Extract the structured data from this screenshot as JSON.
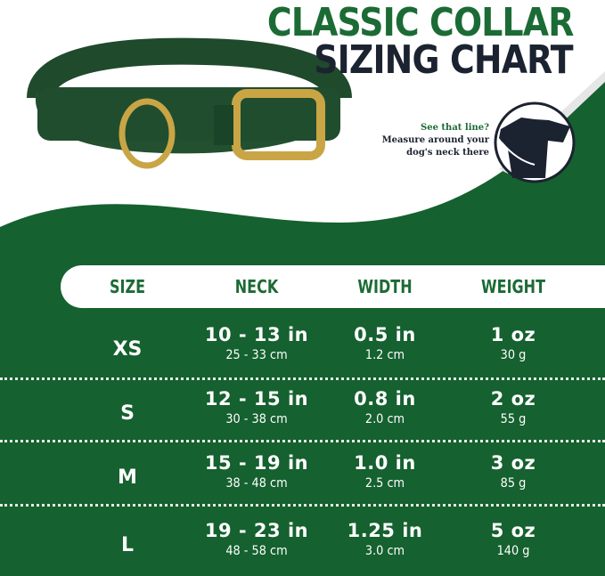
{
  "title_line1": "CLASSIC COLLAR",
  "title_line2": "SIZING CHART",
  "hint": {
    "line1": "See that line?",
    "line2": "Measure around your",
    "line3": "dog's neck there"
  },
  "colors": {
    "green": "#1c6b35",
    "navy": "#1b2230",
    "background_green": "#15612f"
  },
  "icons": [
    "collar-image",
    "dog-head-measure-icon"
  ],
  "headers": [
    "SIZE",
    "NECK",
    "WIDTH",
    "WEIGHT"
  ],
  "rows": [
    {
      "size": "XS",
      "neck_in": "10 - 13 in",
      "neck_cm": "25 - 33 cm",
      "width_in": "0.5 in",
      "width_cm": "1.2 cm",
      "weight_oz": "1 oz",
      "weight_g": "30 g"
    },
    {
      "size": "S",
      "neck_in": "12 - 15 in",
      "neck_cm": "30 - 38 cm",
      "width_in": "0.8 in",
      "width_cm": "2.0 cm",
      "weight_oz": "2 oz",
      "weight_g": "55 g"
    },
    {
      "size": "M",
      "neck_in": "15 - 19 in",
      "neck_cm": "38 - 48 cm",
      "width_in": "1.0 in",
      "width_cm": "2.5 cm",
      "weight_oz": "3 oz",
      "weight_g": "85 g"
    },
    {
      "size": "L",
      "neck_in": "19 - 23 in",
      "neck_cm": "48 - 58 cm",
      "width_in": "1.25 in",
      "width_cm": "3.0 cm",
      "weight_oz": "5 oz",
      "weight_g": "140 g"
    }
  ]
}
